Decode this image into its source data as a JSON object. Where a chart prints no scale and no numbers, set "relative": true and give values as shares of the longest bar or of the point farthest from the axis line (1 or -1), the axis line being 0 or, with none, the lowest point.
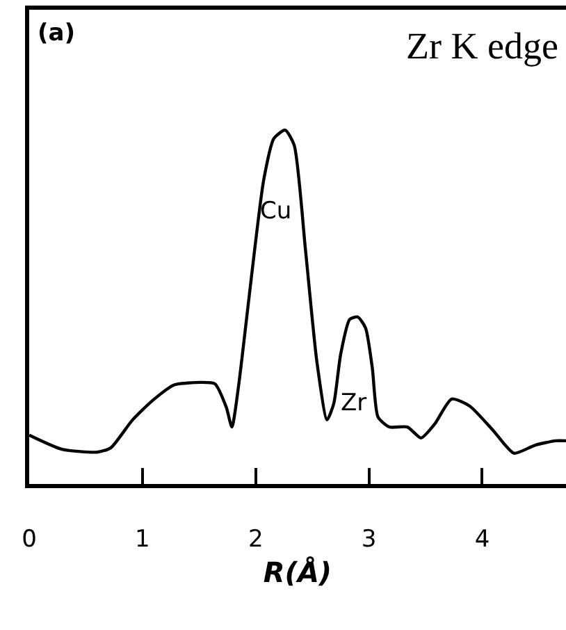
{
  "chart_data": {
    "type": "line",
    "relative": true,
    "title": "Zr K edge",
    "xlabel": "R(Å)",
    "x": [
      0,
      0.29,
      0.6,
      0.72,
      0.91,
      1.09,
      1.28,
      1.52,
      1.64,
      1.74,
      1.79,
      1.85,
      1.89,
      1.99,
      2.07,
      2.16,
      2.26,
      2.34,
      2.44,
      2.54,
      2.63,
      2.69,
      2.75,
      2.83,
      2.9,
      2.97,
      3.03,
      3.08,
      3.18,
      3.34,
      3.46,
      3.58,
      3.73,
      3.89,
      4.1,
      4.28,
      4.47,
      4.65,
      4.74
    ],
    "series": [
      {
        "color": "#000000",
        "values": [
          0.138,
          0.098,
          0.09,
          0.102,
          0.18,
          0.236,
          0.28,
          0.287,
          0.283,
          0.217,
          0.161,
          0.28,
          0.386,
          0.66,
          0.858,
          0.976,
          1.0,
          0.957,
          0.66,
          0.346,
          0.181,
          0.228,
          0.366,
          0.465,
          0.472,
          0.441,
          0.327,
          0.189,
          0.161,
          0.161,
          0.13,
          0.169,
          0.24,
          0.22,
          0.15,
          0.087,
          0.11,
          0.122,
          0.122
        ]
      }
    ],
    "xlim": [
      0,
      4.74
    ],
    "xticks": [
      0,
      1,
      2,
      3,
      4
    ],
    "annotations": [
      "(a)",
      "Cu",
      "Zr"
    ],
    "marker": "none",
    "line_style": "solid"
  }
}
